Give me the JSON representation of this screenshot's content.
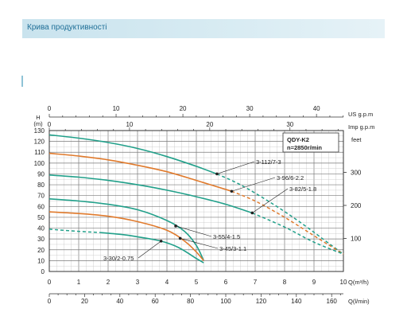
{
  "banner": {
    "title": "Крива продуктивності"
  },
  "chart_data": {
    "type": "line",
    "title": "QDY-K2",
    "subtitle": "n=2850r/min",
    "ylabel_letter": "H",
    "ylabel_unit": "(m)",
    "ylim": [
      0,
      130
    ],
    "y_ticks": [
      "0",
      "10",
      "20",
      "30",
      "40",
      "50",
      "60",
      "70",
      "80",
      "90",
      "100",
      "110",
      "120",
      "130"
    ],
    "right_axis": {
      "label": "feet",
      "ticks": [
        "100",
        "200",
        "300"
      ],
      "values": [
        100,
        200,
        300
      ]
    },
    "x_bottom_m3h": {
      "label": "Q(m³/h)",
      "ticks": [
        "0",
        "1",
        "2",
        "3",
        "4",
        "5",
        "6",
        "7",
        "8",
        "9",
        "10"
      ],
      "range": [
        0,
        10
      ]
    },
    "x_bottom_lmin": {
      "label": "Q(l/min)",
      "ticks": [
        "0",
        "20",
        "40",
        "60",
        "80",
        "100",
        "120",
        "140",
        "160"
      ],
      "values": [
        0,
        20,
        40,
        60,
        80,
        100,
        120,
        140,
        160
      ]
    },
    "x_top_usgpm": {
      "label": "US g.p.m",
      "ticks": [
        "0",
        "10",
        "20",
        "30",
        "40"
      ],
      "values": [
        0,
        10,
        20,
        30,
        40
      ]
    },
    "x_top_impgpm": {
      "label": "Imp g.p.m",
      "ticks": [
        "0",
        "10",
        "20",
        "30"
      ],
      "values": [
        0,
        10,
        20,
        30
      ]
    },
    "colors": {
      "teal": "#21a08a",
      "orange": "#e07a2c",
      "grid": "#9a9a9a"
    },
    "series": [
      {
        "name": "3-112/7-3",
        "color": "#21a08a",
        "solid_end": 5.7,
        "points": [
          [
            0,
            126
          ],
          [
            1,
            123
          ],
          [
            2,
            119
          ],
          [
            3,
            113.5
          ],
          [
            4,
            106
          ],
          [
            5,
            97
          ],
          [
            5.7,
            90
          ],
          [
            6.5,
            80
          ],
          [
            7.5,
            64
          ],
          [
            8.5,
            46
          ],
          [
            9.5,
            26
          ],
          [
            10,
            16
          ]
        ],
        "label_at": 5.7
      },
      {
        "name": "3-96/6-2.2",
        "color": "#e07a2c",
        "solid_end": 6.2,
        "points": [
          [
            0,
            109
          ],
          [
            1,
            106.5
          ],
          [
            2,
            103
          ],
          [
            3,
            98
          ],
          [
            4,
            92
          ],
          [
            5,
            84
          ],
          [
            6.2,
            74
          ],
          [
            7,
            65
          ],
          [
            8,
            50
          ],
          [
            9,
            33
          ],
          [
            10,
            16
          ]
        ],
        "label_at": 6.2
      },
      {
        "name": "3-82/5-1.8",
        "color": "#21a08a",
        "solid_end": 6.9,
        "points": [
          [
            0,
            89
          ],
          [
            1,
            87
          ],
          [
            2,
            84
          ],
          [
            3,
            80
          ],
          [
            4,
            75
          ],
          [
            5,
            69
          ],
          [
            6,
            62
          ],
          [
            6.9,
            54
          ],
          [
            8,
            41
          ],
          [
            9,
            27
          ],
          [
            10,
            16
          ]
        ],
        "label_at": 6.9
      },
      {
        "name": "3-55/4-1.5",
        "color": "#21a08a",
        "solid_end": 5.25,
        "points": [
          [
            0,
            67
          ],
          [
            1,
            65
          ],
          [
            2,
            62
          ],
          [
            3,
            57
          ],
          [
            4,
            47
          ],
          [
            4.6,
            37
          ],
          [
            5,
            24
          ],
          [
            5.25,
            10
          ]
        ],
        "label_at": 4.3
      },
      {
        "name": "3-45/3-1.1",
        "color": "#e07a2c",
        "solid_end": 5.25,
        "points": [
          [
            0,
            55
          ],
          [
            1,
            53.5
          ],
          [
            2,
            51
          ],
          [
            3,
            46
          ],
          [
            4,
            38
          ],
          [
            4.6,
            28
          ],
          [
            5,
            18
          ],
          [
            5.25,
            10
          ]
        ],
        "label_at": 4.45
      },
      {
        "name": "3-30/2-0.75",
        "color": "#21a08a",
        "solid_end": 5.25,
        "dashed_start": 1.7,
        "points": [
          [
            0,
            39
          ],
          [
            1,
            37
          ],
          [
            1.7,
            36
          ],
          [
            2.5,
            34
          ],
          [
            3,
            32
          ],
          [
            3.8,
            28
          ],
          [
            4.4,
            22
          ],
          [
            5,
            12
          ],
          [
            5.25,
            8
          ]
        ],
        "label_at": 3.8
      }
    ]
  }
}
